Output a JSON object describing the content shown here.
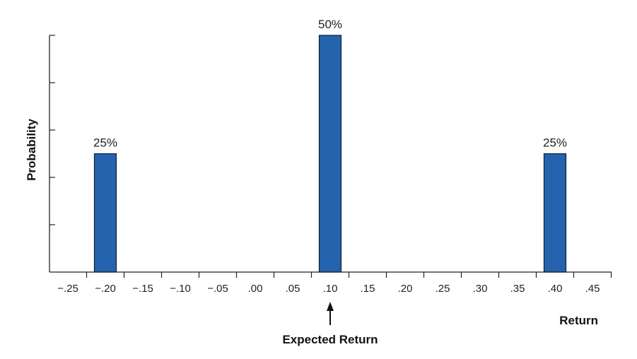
{
  "chart_data": {
    "type": "bar",
    "x": [
      -0.2,
      0.1,
      0.4
    ],
    "values": [
      0.25,
      0.5,
      0.25
    ],
    "data_labels": [
      "25%",
      "50%",
      "25%"
    ],
    "x_ticks": [
      -0.25,
      -0.2,
      -0.15,
      -0.1,
      -0.05,
      0.0,
      0.05,
      0.1,
      0.15,
      0.2,
      0.25,
      0.3,
      0.35,
      0.4,
      0.45
    ],
    "x_tick_labels": [
      "−.25",
      "−.20",
      "−.15",
      "−.10",
      "−.05",
      ".00",
      ".05",
      ".10",
      ".15",
      ".20",
      ".25",
      ".30",
      ".35",
      ".40",
      ".45"
    ],
    "y_ticks": [
      0.1,
      0.2,
      0.3,
      0.4,
      0.5
    ],
    "y_tick_labels": [],
    "xlabel": "Return",
    "ylabel": "Probability",
    "xlim": [
      -0.28,
      0.47
    ],
    "ylim": [
      0,
      0.5
    ],
    "annotation": {
      "text": "Expected Return",
      "x": 0.1
    },
    "grid": false,
    "legend": "none",
    "bar_color": "#2563ae",
    "bar_edge_color": "#0e1f3a"
  }
}
